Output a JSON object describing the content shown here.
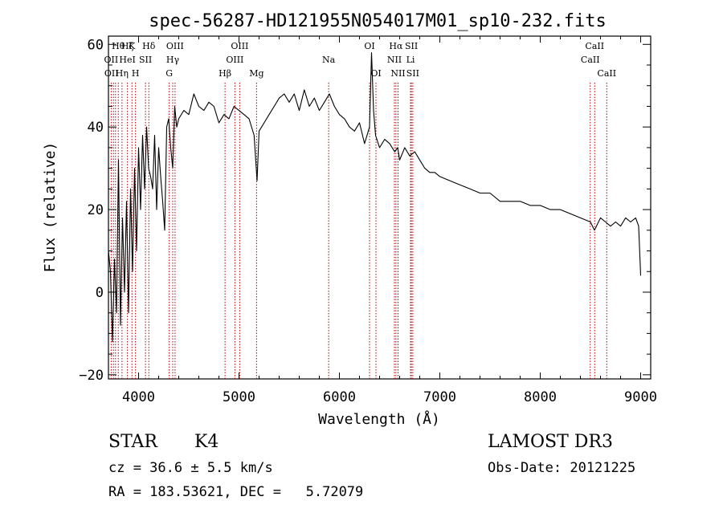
{
  "chart_data": {
    "type": "line",
    "title": "spec-56287-HD121955N054017M01_sp10-232.fits",
    "xlabel": "Wavelength (Å)",
    "ylabel": "Flux (relative)",
    "xlim": [
      3700,
      9100
    ],
    "ylim": [
      -21,
      62
    ],
    "xticks": [
      4000,
      5000,
      6000,
      7000,
      8000,
      9000
    ],
    "yticks": [
      -20,
      0,
      20,
      40,
      60
    ],
    "series": [
      {
        "name": "flux",
        "x": [
          3700,
          3720,
          3740,
          3760,
          3780,
          3800,
          3820,
          3840,
          3860,
          3880,
          3900,
          3920,
          3940,
          3960,
          3980,
          4000,
          4020,
          4040,
          4060,
          4080,
          4100,
          4120,
          4140,
          4160,
          4180,
          4200,
          4220,
          4240,
          4260,
          4280,
          4300,
          4320,
          4340,
          4360,
          4380,
          4400,
          4450,
          4500,
          4550,
          4600,
          4650,
          4700,
          4750,
          4800,
          4850,
          4900,
          4950,
          5000,
          5050,
          5100,
          5150,
          5180,
          5200,
          5250,
          5300,
          5350,
          5400,
          5450,
          5500,
          5550,
          5600,
          5650,
          5700,
          5750,
          5800,
          5850,
          5900,
          5950,
          6000,
          6050,
          6100,
          6150,
          6200,
          6250,
          6300,
          6320,
          6340,
          6360,
          6400,
          6450,
          6500,
          6550,
          6580,
          6600,
          6650,
          6700,
          6750,
          6800,
          6850,
          6900,
          6950,
          7000,
          7100,
          7200,
          7300,
          7400,
          7500,
          7600,
          7700,
          7800,
          7900,
          8000,
          8100,
          8200,
          8300,
          8400,
          8500,
          8540,
          8600,
          8650,
          8700,
          8750,
          8800,
          8850,
          8900,
          8950,
          8980,
          9000
        ],
        "values": [
          10,
          5,
          -12,
          8,
          -5,
          32,
          -8,
          18,
          0,
          22,
          -5,
          25,
          5,
          30,
          10,
          35,
          20,
          38,
          25,
          40,
          30,
          28,
          25,
          38,
          20,
          35,
          28,
          22,
          15,
          40,
          42,
          35,
          30,
          45,
          40,
          42,
          44,
          43,
          48,
          45,
          44,
          46,
          45,
          41,
          43,
          42,
          45,
          44,
          43,
          42,
          38,
          27,
          39,
          41,
          43,
          45,
          47,
          48,
          46,
          48,
          44,
          49,
          45,
          47,
          44,
          46,
          48,
          45,
          43,
          42,
          40,
          39,
          41,
          36,
          40,
          58,
          44,
          38,
          35,
          37,
          36,
          34,
          35,
          32,
          35,
          33,
          34,
          32,
          30,
          29,
          29,
          28,
          27,
          26,
          25,
          24,
          24,
          22,
          22,
          22,
          21,
          21,
          20,
          20,
          19,
          18,
          17,
          15,
          18,
          17,
          16,
          17,
          16,
          18,
          17,
          18,
          16,
          4
        ]
      }
    ],
    "line_labels": [
      {
        "text": "Hθ",
        "wl": 3798,
        "row": 0
      },
      {
        "text": "OII",
        "wl": 3727,
        "row": 1
      },
      {
        "text": "OII",
        "wl": 3730,
        "row": 2
      },
      {
        "text": "Hζ",
        "wl": 3889,
        "row": 0
      },
      {
        "text": "K",
        "wl": 3934,
        "row": 0
      },
      {
        "text": "HeI",
        "wl": 3889,
        "row": 1
      },
      {
        "text": "Hη",
        "wl": 3835,
        "row": 2
      },
      {
        "text": "SII",
        "wl": 4069,
        "row": 1
      },
      {
        "text": "H",
        "wl": 3969,
        "row": 2
      },
      {
        "text": "Hδ",
        "wl": 4102,
        "row": 0
      },
      {
        "text": "OIII",
        "wl": 4363,
        "row": 0
      },
      {
        "text": "Hγ",
        "wl": 4340,
        "row": 1
      },
      {
        "text": "G",
        "wl": 4305,
        "row": 2
      },
      {
        "text": "Hβ",
        "wl": 4861,
        "row": 2
      },
      {
        "text": "OIII",
        "wl": 5007,
        "row": 0
      },
      {
        "text": "OIII",
        "wl": 4959,
        "row": 1
      },
      {
        "text": "Mg",
        "wl": 5175,
        "row": 2
      },
      {
        "text": "Na",
        "wl": 5893,
        "row": 1
      },
      {
        "text": "OI",
        "wl": 6300,
        "row": 0
      },
      {
        "text": "OI",
        "wl": 6364,
        "row": 2
      },
      {
        "text": "Hα",
        "wl": 6563,
        "row": 0
      },
      {
        "text": "SII",
        "wl": 6717,
        "row": 0
      },
      {
        "text": "NII",
        "wl": 6548,
        "row": 1
      },
      {
        "text": "Li",
        "wl": 6708,
        "row": 1
      },
      {
        "text": "NII",
        "wl": 6584,
        "row": 2
      },
      {
        "text": "SII",
        "wl": 6731,
        "row": 2
      },
      {
        "text": "CaII",
        "wl": 8542,
        "row": 0
      },
      {
        "text": "CaII",
        "wl": 8498,
        "row": 1
      },
      {
        "text": "CaII",
        "wl": 8662,
        "row": 2
      }
    ],
    "line_markers": [
      3727,
      3750,
      3770,
      3798,
      3835,
      3889,
      3934,
      3969,
      4069,
      4102,
      4305,
      4340,
      4363,
      4861,
      4959,
      5007,
      5175,
      5893,
      6300,
      6364,
      6548,
      6563,
      6584,
      6708,
      6717,
      6731,
      8498,
      8542,
      8662
    ],
    "line_marker_color": "#b00000",
    "line_color": "#000000"
  },
  "info": {
    "object_class": "STAR",
    "subclass": "K4",
    "survey": "LAMOST DR3",
    "redshift": "cz = 36.6 ± 5.5 km/s",
    "obs_date": "Obs-Date: 20121225",
    "coords": "RA = 183.53621, DEC =   5.72079"
  }
}
